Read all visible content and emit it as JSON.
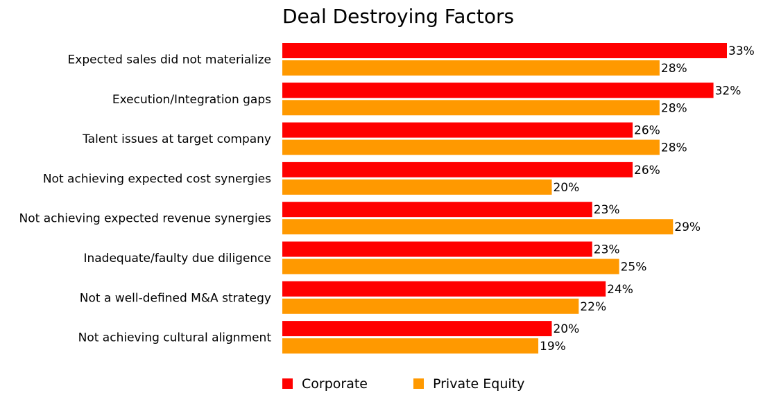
{
  "chart_data": {
    "type": "bar",
    "orientation": "horizontal",
    "title": "Deal Destroying Factors",
    "xlabel": "",
    "ylabel": "",
    "xlim": [
      0,
      33
    ],
    "value_suffix": "%",
    "grid": false,
    "legend_position": "bottom",
    "categories": [
      "Expected sales did not materialize",
      "Execution/Integration gaps",
      "Talent issues at target company",
      "Not achieving expected cost synergies",
      "Not achieving expected revenue synergies",
      "Inadequate/faulty due diligence",
      "Not a well-defined M&A strategy",
      "Not achieving cultural alignment"
    ],
    "series": [
      {
        "name": "Corporate",
        "color": "#ff0000",
        "values": [
          33,
          32,
          26,
          26,
          23,
          23,
          24,
          20
        ],
        "labels": [
          "33%",
          "32%",
          "26%",
          "26%",
          "23%",
          "23%",
          "24%",
          "20%"
        ]
      },
      {
        "name": "Private Equity",
        "color": "#ff9900",
        "values": [
          28,
          28,
          28,
          20,
          29,
          25,
          22,
          19
        ],
        "labels": [
          "28%",
          "28%",
          "28%",
          "20%",
          "29%",
          "25%",
          "22%",
          "19%"
        ]
      }
    ]
  }
}
